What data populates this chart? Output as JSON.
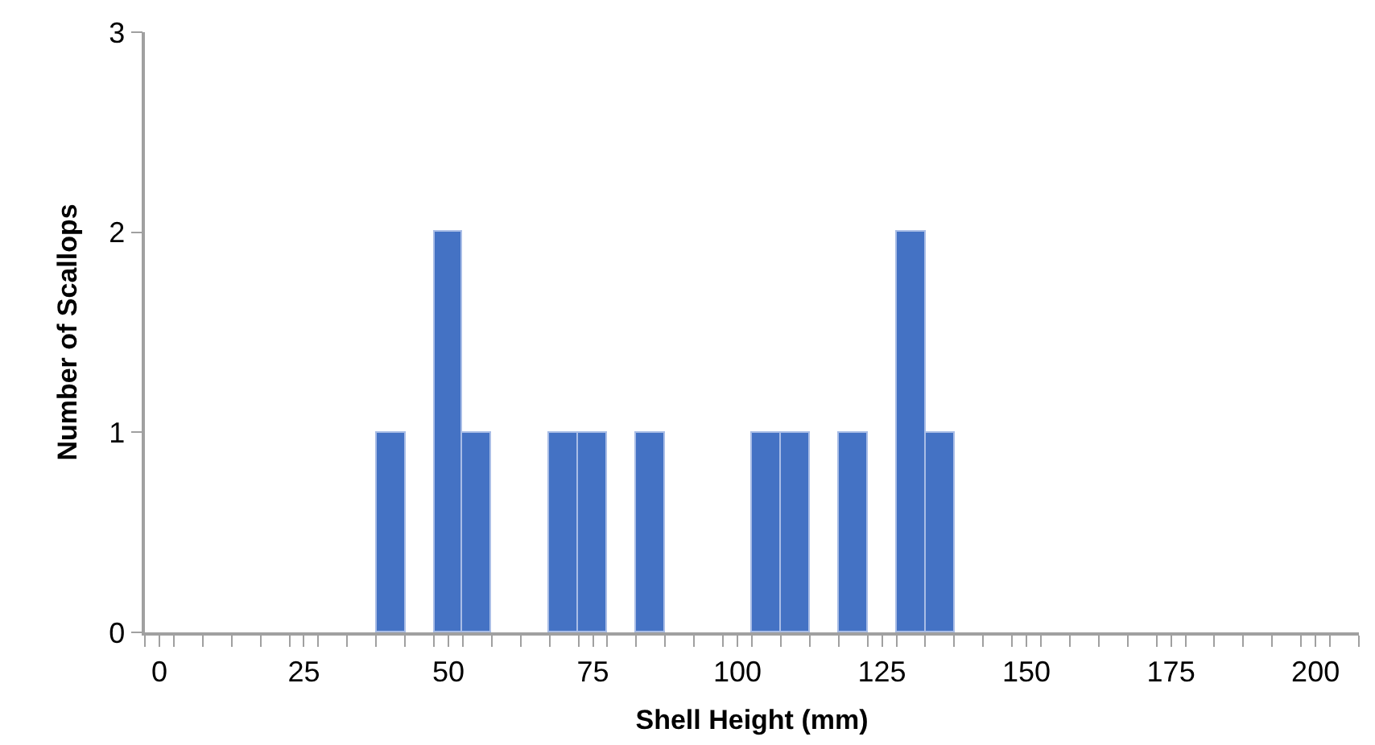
{
  "chart_data": {
    "type": "histogram",
    "xlabel": "Shell Height (mm)",
    "ylabel": "Number of Scallops",
    "color": "#4472c4",
    "bins": [
      -2.5,
      2.5,
      7.5,
      12.5,
      17.5,
      22.5,
      27.5,
      32.5,
      37.5,
      42.5,
      47.5,
      52.5,
      57.5,
      62.5,
      67.5,
      72.5,
      77.5,
      82.5,
      87.5,
      92.5,
      97.5,
      102.5,
      107.5,
      112.5,
      117.5,
      122.5,
      127.5,
      132.5,
      137.5,
      142.5,
      147.5,
      152.5,
      157.5,
      162.5,
      167.5,
      172.5,
      177.5,
      182.5,
      187.5,
      192.5,
      197.5,
      202.5,
      207.5
    ],
    "values": [
      0,
      0,
      0,
      0,
      0,
      0,
      0,
      0,
      1,
      0,
      2,
      1,
      0,
      0,
      1,
      1,
      0,
      1,
      0,
      0,
      0,
      1,
      1,
      0,
      1,
      0,
      2,
      1,
      0,
      0,
      0,
      0,
      0,
      0,
      0,
      0,
      0,
      0,
      0,
      0,
      0,
      0
    ],
    "xlim": [
      -2.5,
      207.5
    ],
    "xticks": [
      0,
      25,
      50,
      75,
      100,
      125,
      150,
      175,
      200,
      {
        "value": -2.5,
        "label": null
      },
      {
        "value": 2.5,
        "label": null
      },
      {
        "value": 7.5,
        "label": null
      },
      {
        "value": 12.5,
        "label": null
      },
      {
        "value": 17.5,
        "label": null
      },
      {
        "value": 22.5,
        "label": null
      },
      {
        "value": 27.5,
        "label": null
      },
      {
        "value": 32.5,
        "label": null
      },
      {
        "value": 37.5,
        "label": null
      },
      {
        "value": 42.5,
        "label": null
      },
      {
        "value": 47.5,
        "label": null
      },
      {
        "value": 52.5,
        "label": null
      },
      {
        "value": 57.5,
        "label": null
      },
      {
        "value": 62.5,
        "label": null
      },
      {
        "value": 67.5,
        "label": null
      },
      {
        "value": 72.5,
        "label": null
      },
      {
        "value": 77.5,
        "label": null
      },
      {
        "value": 82.5,
        "label": null
      },
      {
        "value": 87.5,
        "label": null
      },
      {
        "value": 92.5,
        "label": null
      },
      {
        "value": 97.5,
        "label": null
      },
      {
        "value": 102.5,
        "label": null
      },
      {
        "value": 107.5,
        "label": null
      },
      {
        "value": 112.5,
        "label": null
      },
      {
        "value": 117.5,
        "label": null
      },
      {
        "value": 122.5,
        "label": null
      },
      {
        "value": 127.5,
        "label": null
      },
      {
        "value": 132.5,
        "label": null
      },
      {
        "value": 137.5,
        "label": null
      },
      {
        "value": 142.5,
        "label": null
      },
      {
        "value": 147.5,
        "label": null
      },
      {
        "value": 152.5,
        "label": null
      },
      {
        "value": 157.5,
        "label": null
      },
      {
        "value": 162.5,
        "label": null
      },
      {
        "value": 167.5,
        "label": null
      },
      {
        "value": 172.5,
        "label": null
      },
      {
        "value": 177.5,
        "label": null
      },
      {
        "value": 182.5,
        "label": null
      },
      {
        "value": 187.5,
        "label": null
      },
      {
        "value": 192.5,
        "label": null
      },
      {
        "value": 197.5,
        "label": null
      },
      {
        "value": 202.5,
        "label": null
      },
      {
        "value": 207.5,
        "label": null
      }
    ],
    "ylim": [
      0,
      3
    ],
    "yticks": [
      0,
      1,
      2,
      3
    ]
  }
}
